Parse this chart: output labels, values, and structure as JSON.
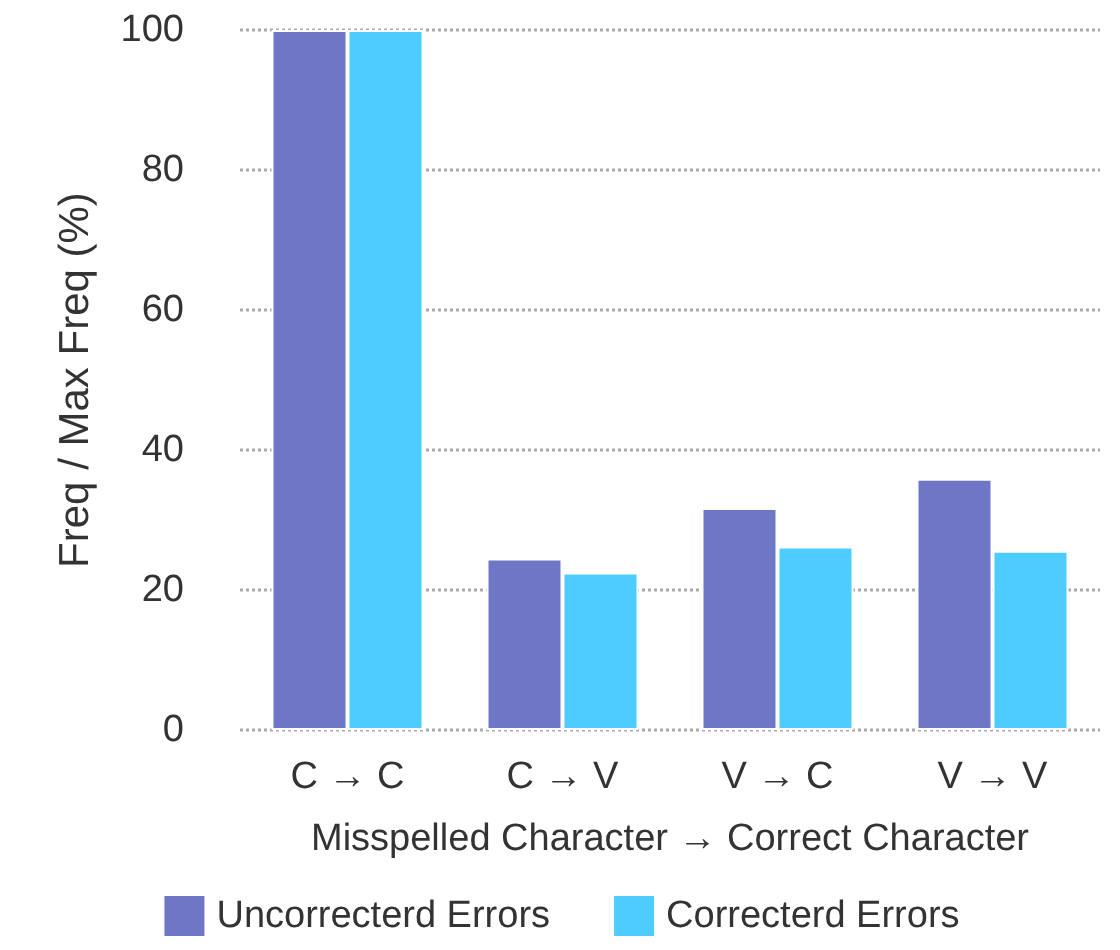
{
  "chart_data": {
    "type": "bar",
    "xlabel": "Misspelled Character → Correct Character",
    "ylabel": "Freq / Max Freq (%)",
    "categories": [
      "C → C",
      "C → V",
      "V → C",
      "V → V"
    ],
    "series": [
      {
        "name": "Uncorrecterd Errors",
        "color": "#6f76c6",
        "values": [
          100,
          24.5,
          31.7,
          35.9
        ]
      },
      {
        "name": "Correcterd Errors",
        "color": "#4dcdff",
        "values": [
          100,
          22.5,
          26.2,
          25.6
        ]
      }
    ],
    "ylim": [
      0,
      100
    ],
    "yticks": [
      0,
      20,
      40,
      60,
      80,
      100
    ],
    "grid": "y",
    "legend": "bottom"
  }
}
